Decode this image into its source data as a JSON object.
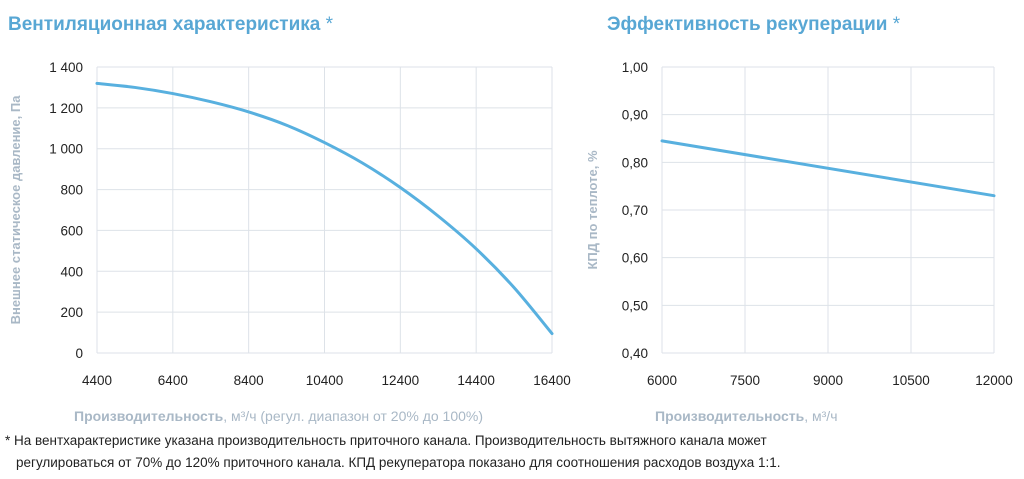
{
  "titles": {
    "left": "Вентиляционная характеристика",
    "right": "Эффективность рекуперации",
    "star": "*"
  },
  "xlabels": {
    "left_bold": "Производительность",
    "left_rest": ", м³/ч (регул. диапазон от 20% до 100%)",
    "right_bold": "Производительность",
    "right_rest": ", м³/ч"
  },
  "footnote": {
    "line1": "* На вентхарактеристике указана производительность приточного канала. Производительность вытяжного канала может",
    "line2": "регулироваться от 70% до 120% приточного канала. КПД рекуператора показано для соотношения расходов воздуха 1:1."
  },
  "colors": {
    "line": "#58b0df",
    "grid": "#dde2e8",
    "title": "#58a7d4",
    "label": "#a9b8c6"
  },
  "chart_data": [
    {
      "type": "line",
      "title": "Вентиляционная характеристика",
      "xlabel": "Производительность, м³/ч (регул. диапазон от 20% до 100%)",
      "ylabel": "Внешнее статическое давление, Па",
      "xlim": [
        4400,
        16400
      ],
      "ylim": [
        0,
        1400
      ],
      "xticks": [
        4400,
        6400,
        8400,
        10400,
        12400,
        14400,
        16400
      ],
      "xtick_labels": [
        "4400",
        "6400",
        "8400",
        "10400",
        "12400",
        "14400",
        "16400"
      ],
      "yticks": [
        0,
        200,
        400,
        600,
        800,
        1000,
        1200,
        1400
      ],
      "ytick_labels": [
        "0",
        "200",
        "400",
        "600",
        "800",
        "1 000",
        "1 200",
        "1 400"
      ],
      "grid": true,
      "x": [
        4400,
        5400,
        6400,
        7400,
        8400,
        9400,
        10400,
        11400,
        12400,
        13400,
        14400,
        15400,
        16400
      ],
      "y": [
        1320,
        1300,
        1270,
        1230,
        1180,
        1115,
        1030,
        930,
        810,
        670,
        510,
        320,
        95
      ]
    },
    {
      "type": "line",
      "title": "Эффективность рекуперации",
      "xlabel": "Производительность, м³/ч",
      "ylabel": "КПД по теплоте, %",
      "xlim": [
        6000,
        12000
      ],
      "ylim": [
        0.4,
        1.0
      ],
      "xticks": [
        6000,
        7500,
        9000,
        10500,
        12000
      ],
      "xtick_labels": [
        "6000",
        "7500",
        "9000",
        "10500",
        "12000"
      ],
      "yticks": [
        0.4,
        0.5,
        0.6,
        0.7,
        0.8,
        0.9,
        1.0
      ],
      "ytick_labels": [
        "0,40",
        "0,50",
        "0,60",
        "0,70",
        "0,80",
        "0,90",
        "1,00"
      ],
      "grid": true,
      "x": [
        6000,
        12000
      ],
      "y": [
        0.845,
        0.73
      ]
    }
  ]
}
